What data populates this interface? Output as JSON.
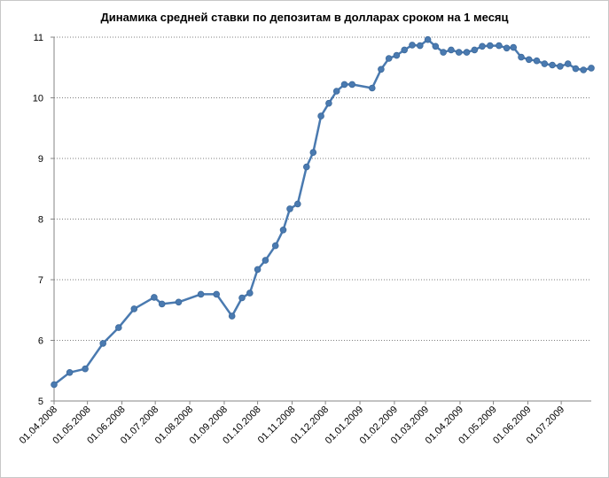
{
  "chart_data": {
    "type": "line",
    "title": "Динамика средней ставки по депозитам в долларах сроком на 1 месяц",
    "xlabel": "",
    "ylabel": "",
    "ylim": [
      5,
      11
    ],
    "yticks": [
      "5",
      "6",
      "7",
      "8",
      "9",
      "10",
      "11"
    ],
    "x_ticks": [
      "01.04.2008",
      "01.05.2008",
      "01.06.2008",
      "01.07.2008",
      "01.08.2008",
      "01.09.2008",
      "01.10.2008",
      "01.11.2008",
      "01.12.2008",
      "01.01.2009",
      "01.02.2009",
      "01.03.2009",
      "01.04.2009",
      "01.05.2009",
      "01.06.2009",
      "01.07.2009"
    ],
    "x_range": [
      "2008-04-01",
      "2009-07-28"
    ],
    "grid": "horizontal-dotted",
    "line_color": "#4a7ab0",
    "series": [
      {
        "points": [
          [
            "2008-04-01",
            5.27
          ],
          [
            "2008-04-15",
            5.47
          ],
          [
            "2008-04-29",
            5.53
          ],
          [
            "2008-05-15",
            5.95
          ],
          [
            "2008-05-29",
            6.21
          ],
          [
            "2008-06-12",
            6.52
          ],
          [
            "2008-06-30",
            6.71
          ],
          [
            "2008-07-07",
            6.6
          ],
          [
            "2008-07-22",
            6.63
          ],
          [
            "2008-08-11",
            6.76
          ],
          [
            "2008-08-25",
            6.76
          ],
          [
            "2008-09-08",
            6.4
          ],
          [
            "2008-09-17",
            6.7
          ],
          [
            "2008-09-24",
            6.78
          ],
          [
            "2008-10-01",
            7.17
          ],
          [
            "2008-10-08",
            7.32
          ],
          [
            "2008-10-17",
            7.56
          ],
          [
            "2008-10-24",
            7.82
          ],
          [
            "2008-10-30",
            8.17
          ],
          [
            "2008-11-06",
            8.25
          ],
          [
            "2008-11-14",
            8.86
          ],
          [
            "2008-11-20",
            9.1
          ],
          [
            "2008-11-27",
            9.7
          ],
          [
            "2008-12-04",
            9.91
          ],
          [
            "2008-12-11",
            10.11
          ],
          [
            "2008-12-18",
            10.22
          ],
          [
            "2008-12-25",
            10.22
          ],
          [
            "2009-01-12",
            10.16
          ],
          [
            "2009-01-20",
            10.47
          ],
          [
            "2009-01-27",
            10.65
          ],
          [
            "2009-02-03",
            10.7
          ],
          [
            "2009-02-10",
            10.79
          ],
          [
            "2009-02-17",
            10.87
          ],
          [
            "2009-02-24",
            10.86
          ],
          [
            "2009-03-03",
            10.96
          ],
          [
            "2009-03-10",
            10.85
          ],
          [
            "2009-03-17",
            10.75
          ],
          [
            "2009-03-24",
            10.79
          ],
          [
            "2009-03-31",
            10.75
          ],
          [
            "2009-04-07",
            10.75
          ],
          [
            "2009-04-14",
            10.79
          ],
          [
            "2009-04-21",
            10.85
          ],
          [
            "2009-04-28",
            10.86
          ],
          [
            "2009-05-06",
            10.86
          ],
          [
            "2009-05-13",
            10.82
          ],
          [
            "2009-05-19",
            10.83
          ],
          [
            "2009-05-26",
            10.67
          ],
          [
            "2009-06-02",
            10.63
          ],
          [
            "2009-06-09",
            10.61
          ],
          [
            "2009-06-16",
            10.56
          ],
          [
            "2009-06-23",
            10.54
          ],
          [
            "2009-06-30",
            10.52
          ],
          [
            "2009-07-07",
            10.56
          ],
          [
            "2009-07-14",
            10.48
          ],
          [
            "2009-07-21",
            10.46
          ],
          [
            "2009-07-28",
            10.49
          ]
        ]
      }
    ]
  }
}
